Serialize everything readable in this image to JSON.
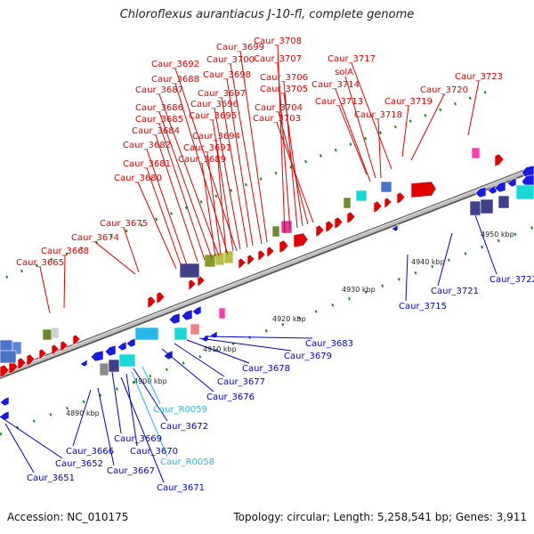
{
  "title": "Chloroflexus aurantiacus J-10-fl, complete genome",
  "footer": {
    "accession": "Accession: NC_010175",
    "summary": "Topology: circular; Length: 5,258,541 bp; Genes: 3,911"
  },
  "colors": {
    "forward_label": "#e00000",
    "reverse_label": "#0000cc",
    "rna_label": "#29b6e8",
    "backbone": "#8a8a8a",
    "tick": "#1a8a1a"
  },
  "ticks": [
    {
      "label": "4890 kbp"
    },
    {
      "label": "4900 kbp"
    },
    {
      "label": "4910 kbp"
    },
    {
      "label": "4920 kbp"
    },
    {
      "label": "4930 kbp"
    },
    {
      "label": "4940 kbp"
    },
    {
      "label": "4950 kbp"
    }
  ],
  "forward_labels": [
    "Caur_3708",
    "Caur_3699",
    "Caur_3707",
    "Caur_3717",
    "Caur_3700",
    "Caur_3692",
    "solA",
    "Caur_3723",
    "Caur_3698",
    "Caur_3706",
    "Caur_3688",
    "Caur_3714",
    "Caur_3705",
    "Caur_3720",
    "Caur_3687",
    "Caur_3697",
    "Caur_3713",
    "Caur_3719",
    "Caur_3696",
    "Caur_3704",
    "Caur_3686",
    "Caur_3718",
    "Caur_3695",
    "Caur_3703",
    "Caur_3685",
    "Caur_3684",
    "Caur_3694",
    "Caur_3682",
    "Caur_3691",
    "Caur_3689",
    "Caur_3681",
    "Caur_3680",
    "Caur_3675",
    "Caur_3674",
    "Caur_3668",
    "Caur_3665"
  ],
  "reverse_labels": [
    "Caur_3683",
    "Caur_3679",
    "Caur_3678",
    "Caur_3677",
    "Caur_3676",
    "Caur_3672",
    "Caur_3669",
    "Caur_3666",
    "Caur_3670",
    "Caur_3652",
    "Caur_3667",
    "Caur_3651",
    "Caur_3671",
    "Caur_3715",
    "Caur_3721",
    "Caur_3722"
  ],
  "rna_labels": [
    "Caur_R0059",
    "Caur_R0058"
  ]
}
